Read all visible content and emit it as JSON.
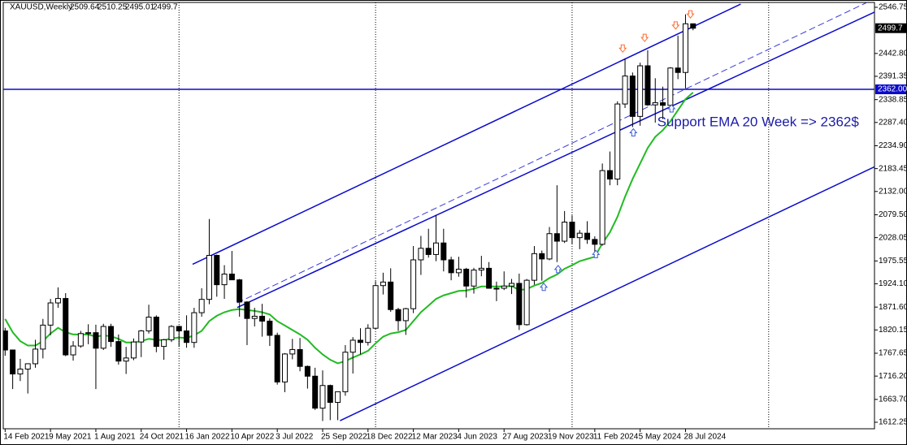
{
  "chart_data": {
    "type": "candlestick",
    "symbol": "XAUUSD,Weekly",
    "xlim": [
      -0.5,
      230
    ],
    "ylim": [
      1597.6,
      2557.7
    ],
    "xticks": [
      {
        "value": 0,
        "label": "14 Feb 2021"
      },
      {
        "value": 12,
        "label": "9 May 2021"
      },
      {
        "value": 24,
        "label": "1 Aug 2021"
      },
      {
        "value": 36,
        "label": "24 Oct 2021"
      },
      {
        "value": 48,
        "label": "16 Jan 2022"
      },
      {
        "value": 60,
        "label": "10 Apr 2022"
      },
      {
        "value": 72,
        "label": "3 Jul 2022"
      },
      {
        "value": 84,
        "label": "25 Sep 2022"
      },
      {
        "value": 96,
        "label": "18 Dec 2022"
      },
      {
        "value": 108,
        "label": "12 Mar 2023"
      },
      {
        "value": 120,
        "label": "4 Jun 2023"
      },
      {
        "value": 132,
        "label": "27 Aug 2023"
      },
      {
        "value": 144,
        "label": "19 Nov 2023"
      },
      {
        "value": 156,
        "label": "11 Feb 2024"
      },
      {
        "value": 168,
        "label": "5 May 2024"
      },
      {
        "value": 180,
        "label": "28 Jul 2024"
      }
    ],
    "yticks": [
      2546.75,
      {
        "value": 2442.8,
        "label": "2442.80"
      },
      2391.35,
      2338.85,
      {
        "value": 2287.4,
        "label": "2287.40"
      },
      {
        "value": 2234.9,
        "label": "2234.90"
      },
      2183.45,
      {
        "value": 2132,
        "label": "2132.00"
      },
      {
        "value": 2079.5,
        "label": "2079.50"
      },
      2028.05,
      1975.55,
      {
        "value": 1924.1,
        "label": "1924.10"
      },
      {
        "value": 1871.6,
        "label": "1871.60"
      },
      1820.15,
      1767.65,
      {
        "value": 1716.2,
        "label": "1716.20"
      },
      {
        "value": 1663.7,
        "label": "1663.70"
      },
      1612.25
    ],
    "period_separators": [
      46,
      98,
      150,
      202
    ],
    "x": [
      0,
      2,
      4,
      6,
      8,
      10,
      12,
      14,
      16,
      18,
      20,
      22,
      24,
      26,
      28,
      30,
      32,
      34,
      36,
      38,
      40,
      42,
      44,
      46,
      48,
      50,
      52,
      54,
      56,
      58,
      60,
      62,
      64,
      66,
      68,
      70,
      72,
      74,
      76,
      78,
      80,
      82,
      84,
      86,
      88,
      90,
      92,
      94,
      96,
      98,
      100,
      102,
      104,
      106,
      108,
      110,
      112,
      114,
      116,
      118,
      120,
      122,
      124,
      126,
      128,
      130,
      132,
      134,
      136,
      138,
      140,
      142,
      144,
      146,
      148,
      150,
      152,
      154,
      156,
      158,
      160,
      162,
      164,
      166,
      168,
      170,
      172,
      174,
      176,
      178,
      180,
      182
    ],
    "open": [
      1818,
      1775,
      1721,
      1732,
      1744,
      1777,
      1831,
      1881,
      1891,
      1764,
      1784,
      1812,
      1814,
      1779,
      1828,
      1794,
      1750,
      1757,
      1793,
      1818,
      1849,
      1783,
      1798,
      1828,
      1818,
      1792,
      1859,
      1889,
      1988,
      1922,
      1946,
      1933,
      1883,
      1846,
      1851,
      1840,
      1808,
      1703,
      1766,
      1776,
      1738,
      1716,
      1644,
      1695,
      1657,
      1681,
      1770,
      1797,
      1792,
      1824,
      1920,
      1928,
      1866,
      1841,
      1868,
      1978,
      2004,
      1990,
      2016,
      1978,
      1949,
      1957,
      1919,
      1955,
      1959,
      1914,
      1914,
      1919,
      1925,
      1832,
      1932,
      1992,
      1980,
      2037,
      2020,
      2063,
      2028,
      2038,
      2024,
      2013,
      2179,
      2160,
      2329,
      2392,
      2301,
      2415,
      2327,
      2332,
      2326,
      2410,
      2400,
      2509.64
    ],
    "high": [
      1825,
      1776,
      1755,
      1745,
      1798,
      1845,
      1890,
      1916,
      1903,
      1795,
      1818,
      1833,
      1832,
      1834,
      1834,
      1810,
      1782,
      1801,
      1820,
      1877,
      1853,
      1800,
      1831,
      1830,
      1853,
      1870,
      1914,
      2070,
      1990,
      1966,
      1998,
      1935,
      1885,
      1870,
      1879,
      1846,
      1814,
      1768,
      1800,
      1802,
      1740,
      1735,
      1729,
      1697,
      1677,
      1786,
      1804,
      1824,
      1833,
      1930,
      1949,
      1959,
      1870,
      1870,
      2009,
      2032,
      2048,
      2079,
      2048,
      1985,
      1985,
      1960,
      1960,
      1987,
      1973,
      1929,
      1952,
      1935,
      1947,
      1935,
      2009,
      1999,
      2052,
      2146,
      2088,
      2078,
      2045,
      2065,
      2031,
      2195,
      2222,
      2335,
      2431,
      2400,
      2422,
      2450,
      2387,
      2368,
      2412,
      2483,
      2531,
      2510.25
    ],
    "low": [
      1762,
      1687,
      1705,
      1677,
      1735,
      1756,
      1808,
      1870,
      1761,
      1751,
      1780,
      1788,
      1687,
      1775,
      1782,
      1742,
      1721,
      1752,
      1759,
      1812,
      1770,
      1753,
      1793,
      1782,
      1780,
      1780,
      1850,
      1878,
      1895,
      1890,
      1940,
      1850,
      1786,
      1828,
      1805,
      1784,
      1697,
      1680,
      1754,
      1727,
      1688,
      1640,
      1615,
      1617,
      1617,
      1672,
      1722,
      1765,
      1785,
      1822,
      1900,
      1861,
      1818,
      1809,
      1858,
      1944,
      1983,
      1975,
      1952,
      1932,
      1940,
      1893,
      1902,
      1941,
      1913,
      1885,
      1910,
      1901,
      1820,
      1830,
      1922,
      1931,
      1977,
      1973,
      2016,
      2013,
      2002,
      2014,
      1984,
      2010,
      2146,
      2146,
      2320,
      2277,
      2280,
      2325,
      2287,
      2295,
      2318,
      2385,
      2364,
      2495.01
    ],
    "close": [
      1775,
      1721,
      1732,
      1744,
      1777,
      1831,
      1881,
      1891,
      1764,
      1784,
      1812,
      1814,
      1779,
      1828,
      1794,
      1750,
      1757,
      1793,
      1818,
      1849,
      1783,
      1798,
      1828,
      1818,
      1792,
      1859,
      1889,
      1988,
      1922,
      1946,
      1933,
      1883,
      1846,
      1851,
      1840,
      1808,
      1703,
      1766,
      1776,
      1738,
      1716,
      1644,
      1695,
      1657,
      1681,
      1770,
      1797,
      1792,
      1824,
      1920,
      1928,
      1866,
      1841,
      1868,
      1978,
      2004,
      1990,
      2016,
      1978,
      1949,
      1957,
      1919,
      1955,
      1959,
      1914,
      1914,
      1919,
      1925,
      1832,
      1932,
      1992,
      1980,
      2037,
      2020,
      2063,
      2028,
      2038,
      2024,
      2013,
      2179,
      2160,
      2329,
      2392,
      2301,
      2415,
      2327,
      2332,
      2326,
      2410,
      2400,
      2509.64,
      2499.7
    ],
    "ema": [
      1845,
      1815,
      1795,
      1785,
      1785,
      1795,
      1812,
      1825,
      1815,
      1810,
      1810,
      1810,
      1805,
      1808,
      1806,
      1800,
      1792,
      1792,
      1795,
      1800,
      1798,
      1797,
      1801,
      1803,
      1802,
      1808,
      1818,
      1840,
      1852,
      1860,
      1865,
      1867,
      1865,
      1863,
      1860,
      1855,
      1840,
      1830,
      1820,
      1810,
      1798,
      1780,
      1765,
      1753,
      1745,
      1750,
      1758,
      1765,
      1773,
      1790,
      1805,
      1812,
      1815,
      1820,
      1840,
      1860,
      1875,
      1890,
      1898,
      1903,
      1908,
      1909,
      1913,
      1918,
      1918,
      1918,
      1918,
      1919,
      1910,
      1912,
      1920,
      1926,
      1937,
      1945,
      1958,
      1966,
      1975,
      1980,
      1985,
      2015,
      2040,
      2075,
      2120,
      2160,
      2195,
      2230,
      2255,
      2270,
      2290,
      2315,
      2340,
      2355
    ],
    "ema_color": "#22bb22",
    "up_color": "#ffffff",
    "down_color": "#000000",
    "trendlines": [
      {
        "x": [
          49.6,
          194.6
        ],
        "y": [
          1968,
          2554
        ],
        "color": "#0a0acc",
        "dashed": false
      },
      {
        "x": [
          61.4,
          230
        ],
        "y": [
          1870.6,
          2535.8
        ],
        "color": "#0a0acc",
        "dashed": false
      },
      {
        "x": [
          61.4,
          228
        ],
        "y": [
          1881,
          2557.7
        ],
        "color": "#3a3ad8",
        "dashed": true
      },
      {
        "x": [
          88.6,
          230
        ],
        "y": [
          1615.8,
          2187.6
        ],
        "color": "#0a0acc",
        "dashed": false
      }
    ],
    "hline": {
      "value": 2362,
      "label": "2362.00",
      "color": "#0a0acc"
    },
    "down_arrows": {
      "x": [
        163.4,
        169.2,
        177.4,
        181.3
      ],
      "y": [
        2453,
        2477,
        2505,
        2530
      ],
      "color": "#ff6a2a"
    },
    "up_arrows": {
      "x": [
        142.5,
        146.3,
        156.3,
        166.2,
        176.3
      ],
      "y": [
        1918,
        1958,
        1992,
        2266,
        2320
      ],
      "color": "#3b5bd6"
    },
    "annotation": {
      "text": "Support EMA 20 Week => 2362$",
      "x": 172.5,
      "y": 2287
    }
  }
}
